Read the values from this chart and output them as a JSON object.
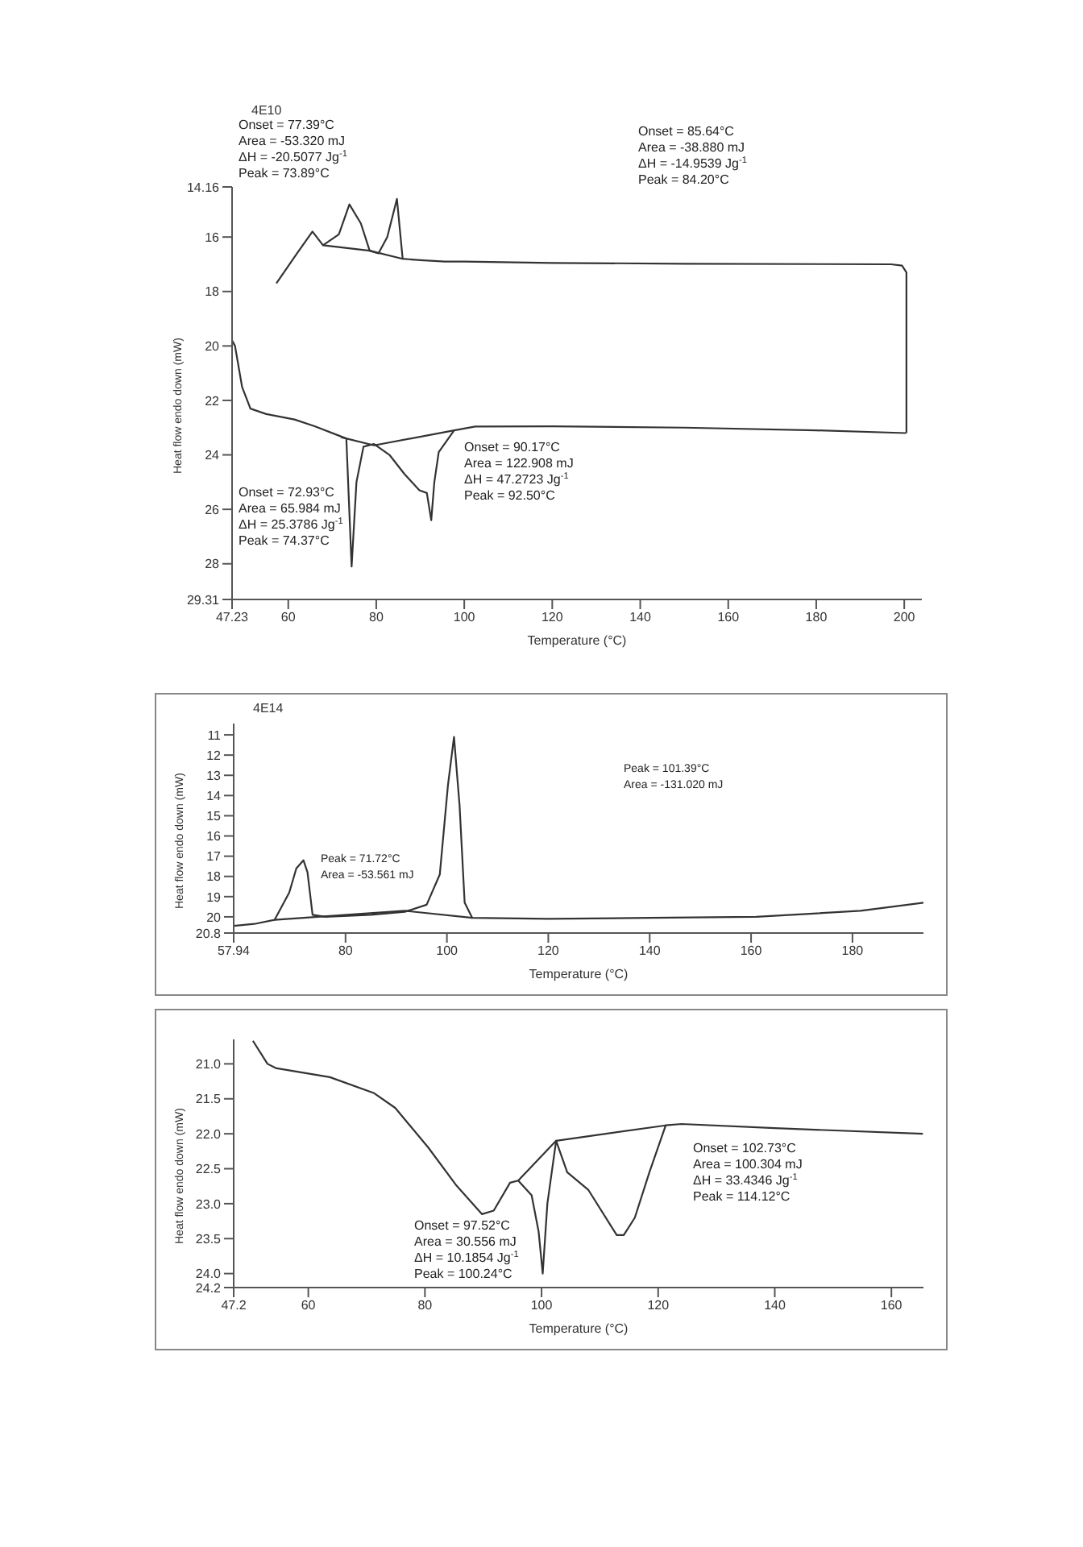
{
  "chart_data": [
    {
      "type": "line",
      "title": "4E10",
      "xlabel": "Temperature (°C)",
      "ylabel": "Heat flow endo down (mW)",
      "xlim": [
        47.23,
        204
      ],
      "xticks": [
        47.23,
        60,
        80,
        100,
        120,
        140,
        160,
        180,
        200
      ],
      "ylim": [
        29.31,
        14.16
      ],
      "yticks": [
        14.16,
        16,
        18,
        20,
        22,
        24,
        26,
        28,
        29.31
      ],
      "series": [
        {
          "color": "#333333",
          "x": [
            47.23,
            47.9,
            49.5,
            51.4,
            55,
            61.4,
            66,
            71.6,
            73.2,
            74.4,
            75.5,
            77.1,
            79.5,
            83,
            86.4,
            89.8,
            91.5,
            92.5,
            93.2,
            94.2,
            97.7,
            102.5,
            120,
            150,
            180,
            200.4
          ],
          "values": [
            19.8,
            20.0,
            21.5,
            22.3,
            22.5,
            22.7,
            22.95,
            23.3,
            23.4,
            28.1,
            25,
            23.7,
            23.6,
            24.0,
            24.7,
            25.3,
            25.4,
            26.4,
            25,
            23.9,
            23.1,
            22.96,
            22.95,
            23.0,
            23.1,
            23.2
          ]
        },
        {
          "color": "#333333",
          "x": [
            200.5,
            200.5,
            199.5,
            197,
            150,
            120,
            100,
            95.6,
            90,
            86,
            84.7,
            82.5,
            80.5,
            78.5,
            76.5,
            73.9,
            71.5,
            67.9,
            65.5,
            62,
            57.3
          ],
          "values": [
            23.2,
            17.3,
            17.05,
            17.0,
            16.98,
            16.95,
            16.9,
            16.9,
            16.85,
            16.8,
            14.6,
            16.0,
            16.6,
            16.5,
            15.5,
            14.8,
            15.9,
            16.3,
            15.8,
            16.6,
            17.7
          ]
        },
        {
          "color": "#333333",
          "x": [
            67.9,
            78.5,
            86
          ],
          "values": [
            16.3,
            16.5,
            16.8
          ]
        },
        {
          "color": "#333333",
          "x": [
            72,
            79.5,
            97.7
          ],
          "values": [
            23.35,
            23.65,
            23.1
          ]
        }
      ],
      "annotations": [
        "Onset = 77.39°C\nArea = -53.320 mJ\nΔH = -20.5077 Jg$^{-1}$\nPeak = 73.89°C",
        "Onset = 85.64°C\nArea = -38.880 mJ\nΔH = -14.9539 Jg$^{-1}$\nPeak = 84.20°C",
        "Onset = 90.17°C\nArea = 122.908 mJ\nΔH = 47.2723 Jg$^{-1}$\nPeak = 92.50°C",
        "Onset = 72.93°C\nArea = 65.984 mJ\nΔH = 25.3786 Jg$^{-1}$\nPeak = 74.37°C"
      ]
    },
    {
      "type": "line",
      "title": "4E14",
      "xlabel": "Temperature (°C)",
      "ylabel": "Heat flow endo down (mW)",
      "xlim": [
        57.94,
        194
      ],
      "xticks": [
        57.94,
        80,
        100,
        120,
        140,
        160,
        180
      ],
      "ylim": [
        20.8,
        10.44
      ],
      "yticks": [
        11,
        12,
        13,
        14,
        15,
        16,
        17,
        18,
        19,
        20,
        20.8
      ],
      "series": [
        {
          "color": "#333333",
          "x": [
            57.94,
            62,
            66,
            68.9,
            70.3,
            71.7,
            72.5,
            73.5,
            76,
            85,
            91.7,
            96,
            98.6,
            100.2,
            101.4,
            102.5,
            103.5,
            105,
            120,
            140,
            161,
            181.6,
            194
          ],
          "values": [
            20.45,
            20.35,
            20.15,
            18.8,
            17.6,
            17.2,
            17.8,
            19.9,
            20.0,
            19.9,
            19.75,
            19.4,
            17.9,
            13.5,
            11.1,
            14.5,
            19.3,
            20.05,
            20.1,
            20.05,
            20.0,
            19.7,
            19.3
          ]
        },
        {
          "color": "#333333",
          "x": [
            66,
            91.7,
            105
          ],
          "values": [
            20.15,
            19.7,
            20.05
          ]
        }
      ],
      "annotations": [
        "Peak = 71.72°C\nArea = -53.561 mJ",
        "Peak = 101.39°C\nArea = -131.020 mJ"
      ]
    },
    {
      "type": "line",
      "xlabel": "Temperature (°C)",
      "ylabel": "Heat flow endo down (mW)",
      "xlim": [
        47.2,
        165.5
      ],
      "xticks": [
        47.2,
        60,
        80,
        100,
        120,
        140,
        160
      ],
      "ylim": [
        24.2,
        20.65
      ],
      "yticks": [
        {
          "value": 21,
          "label": "21.0"
        },
        21.5,
        {
          "value": 22,
          "label": "22.0"
        },
        22.5,
        {
          "value": 23,
          "label": "23.0"
        },
        23.5,
        {
          "value": 24,
          "label": "24.0"
        },
        24.2
      ],
      "series": [
        {
          "color": "#333333",
          "x": [
            50.5,
            53,
            54.4,
            63.7,
            71.3,
            74.9,
            80.6,
            85.3,
            89.8,
            91.8,
            94.6,
            96,
            98.3,
            99.5,
            100.2,
            101,
            102.5,
            104.4,
            108,
            112.9,
            114.1,
            116,
            118.5,
            121.3,
            124,
            140,
            165.4
          ],
          "values": [
            20.67,
            21.0,
            21.06,
            21.19,
            21.42,
            21.63,
            22.2,
            22.73,
            23.15,
            23.1,
            22.7,
            22.67,
            22.88,
            23.4,
            24.0,
            23.0,
            22.1,
            22.55,
            22.8,
            23.45,
            23.45,
            23.2,
            22.55,
            21.88,
            21.86,
            21.92,
            22.0
          ]
        },
        {
          "color": "#333333",
          "x": [
            96,
            102.5,
            121.3
          ],
          "values": [
            22.67,
            22.1,
            21.88
          ]
        }
      ],
      "annotations": [
        "Onset = 97.52°C\nArea = 30.556 mJ\nΔH = 10.1854 Jg$^{-1}$\nPeak = 100.24°C",
        "Onset = 102.73°C\nArea = 100.304 mJ\nΔH = 33.4346 Jg$^{-1}$\nPeak = 114.12°C"
      ]
    }
  ]
}
